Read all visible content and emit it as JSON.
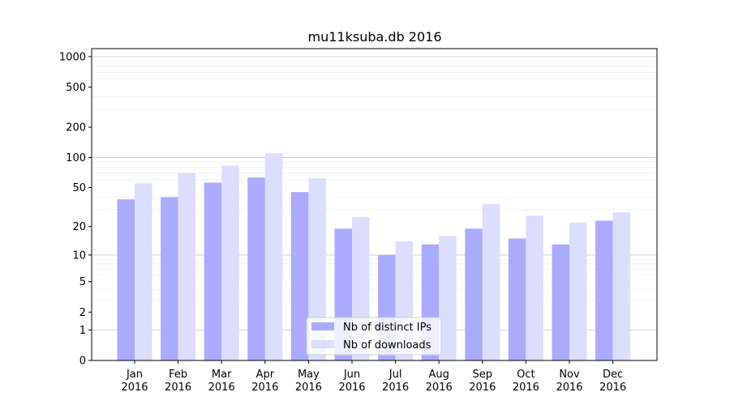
{
  "chart_data": {
    "type": "bar",
    "title": "mu11ksuba.db 2016",
    "xlabel": "",
    "ylabel": "",
    "y_scale": "log(1+y)",
    "ylim": [
      0,
      1200
    ],
    "y_ticks": [
      0,
      1,
      2,
      5,
      10,
      20,
      50,
      100,
      200,
      500,
      1000
    ],
    "grid": "major y only",
    "legend_position": "bottom-center",
    "categories": [
      [
        "Jan",
        "2016"
      ],
      [
        "Feb",
        "2016"
      ],
      [
        "Mar",
        "2016"
      ],
      [
        "Apr",
        "2016"
      ],
      [
        "May",
        "2016"
      ],
      [
        "Jun",
        "2016"
      ],
      [
        "Jul",
        "2016"
      ],
      [
        "Aug",
        "2016"
      ],
      [
        "Sep",
        "2016"
      ],
      [
        "Oct",
        "2016"
      ],
      [
        "Nov",
        "2016"
      ],
      [
        "Dec",
        "2016"
      ]
    ],
    "series": [
      {
        "name": "Nb of distinct IPs",
        "color": "#aaaaff",
        "values": [
          38,
          40,
          56,
          63,
          45,
          19,
          10,
          13,
          19,
          15,
          13,
          23
        ]
      },
      {
        "name": "Nb of downloads",
        "color": "#ddddff",
        "values": [
          55,
          70,
          83,
          110,
          62,
          25,
          14,
          16,
          34,
          26,
          22,
          28
        ]
      }
    ]
  }
}
